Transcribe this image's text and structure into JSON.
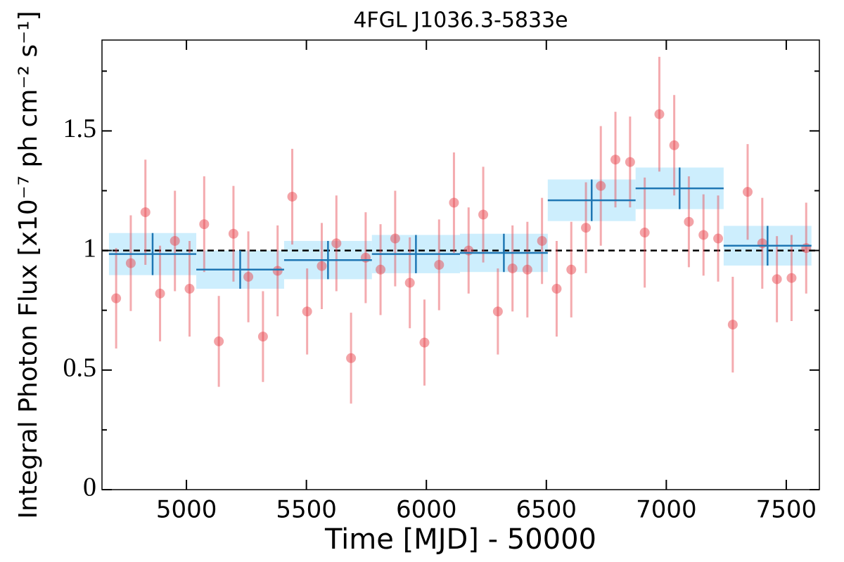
{
  "chart_data": {
    "type": "errorbar",
    "title": "4FGL J1036.3-5833e",
    "x_label": "Time [MJD] - 50000",
    "y_label": "Integral Photon Flux [x10⁻⁷ ph cm⁻² s⁻¹]",
    "xlim": [
      4648,
      7638
    ],
    "ylim": [
      0,
      1.88
    ],
    "xticks": [
      5000,
      5500,
      6000,
      6500,
      7000,
      7500
    ],
    "yticks": [
      0,
      0.5,
      1,
      1.5
    ],
    "yminorticks": [
      0.25,
      0.75,
      1.25,
      1.75
    ],
    "reference_line": 1,
    "points": {
      "color": "#e8474f",
      "x": [
        4707,
        4768,
        4829,
        4890,
        4952,
        5013,
        5074,
        5135,
        5196,
        5258,
        5319,
        5380,
        5441,
        5503,
        5564,
        5625,
        5686,
        5747,
        5809,
        5870,
        5931,
        5992,
        6053,
        6115,
        6176,
        6237,
        6298,
        6359,
        6421,
        6482,
        6543,
        6604,
        6665,
        6727,
        6788,
        6849,
        6910,
        6971,
        7033,
        7094,
        7155,
        7216,
        7277,
        7339,
        7400,
        7461,
        7522,
        7583
      ],
      "values": [
        0.8,
        0.947,
        1.16,
        0.82,
        1.04,
        0.84,
        1.11,
        0.62,
        1.07,
        0.89,
        0.64,
        0.915,
        1.225,
        0.745,
        0.935,
        1.03,
        0.55,
        0.97,
        0.92,
        1.05,
        0.865,
        0.615,
        0.94,
        1.2,
        1.0,
        1.15,
        0.745,
        0.925,
        0.92,
        1.04,
        0.84,
        0.92,
        1.095,
        1.27,
        1.38,
        1.37,
        1.075,
        1.57,
        1.44,
        1.12,
        1.065,
        1.05,
        0.69,
        1.245,
        1.03,
        0.88,
        0.885,
        1.01
      ],
      "errors": [
        0.21,
        0.2,
        0.22,
        0.2,
        0.21,
        0.2,
        0.2,
        0.19,
        0.2,
        0.19,
        0.19,
        0.19,
        0.2,
        0.18,
        0.18,
        0.2,
        0.19,
        0.19,
        0.19,
        0.2,
        0.19,
        0.18,
        0.19,
        0.21,
        0.18,
        0.2,
        0.18,
        0.18,
        0.2,
        0.18,
        0.2,
        0.2,
        0.19,
        0.25,
        0.2,
        0.19,
        0.23,
        0.24,
        0.21,
        0.19,
        0.17,
        0.18,
        0.2,
        0.2,
        0.19,
        0.18,
        0.18,
        0.19
      ]
    },
    "bins": {
      "color": "#1f77b4",
      "band_color": "#cdeefd",
      "x_low": [
        4677,
        5041,
        5407,
        5773,
        6140,
        6506,
        6872,
        7239
      ],
      "x_high": [
        5041,
        5407,
        5773,
        6140,
        6506,
        6872,
        7239,
        7605
      ],
      "values": [
        0.985,
        0.92,
        0.96,
        0.985,
        0.99,
        1.21,
        1.26,
        1.02
      ],
      "errors": [
        0.088,
        0.08,
        0.08,
        0.08,
        0.08,
        0.087,
        0.087,
        0.083
      ]
    }
  }
}
